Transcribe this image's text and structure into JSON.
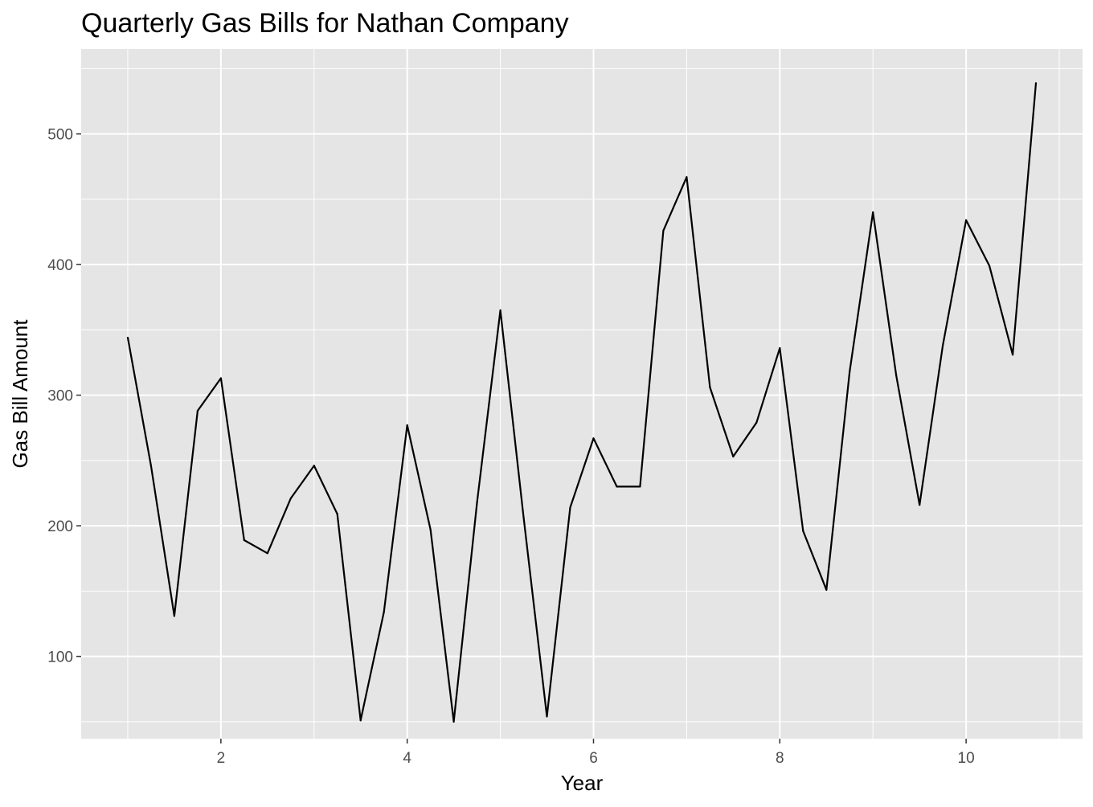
{
  "chart_data": {
    "type": "line",
    "title": "Quarterly Gas Bills for Nathan Company",
    "xlabel": "Year",
    "ylabel": "Gas Bill Amount",
    "xlim": [
      0.5,
      11.25
    ],
    "ylim": [
      37,
      565
    ],
    "x_ticks": [
      2,
      4,
      6,
      8,
      10
    ],
    "y_ticks": [
      100,
      200,
      300,
      400,
      500
    ],
    "x_minor": [
      1,
      3,
      5,
      7,
      9,
      11
    ],
    "y_minor": [
      50,
      150,
      250,
      350,
      450,
      550
    ],
    "grid": true,
    "background": "#e5e5e5",
    "grid_color": "#ffffff",
    "line_color": "#000000",
    "series": [
      {
        "x": [
          1,
          1.25,
          1.5,
          1.75,
          2,
          2.25,
          2.5,
          2.75,
          3,
          3.25,
          3.5,
          3.75,
          4,
          4.25,
          4.5,
          4.75,
          5,
          5.25,
          5.5,
          5.75,
          6,
          6.25,
          6.5,
          6.75,
          7,
          7.25,
          7.5,
          7.75,
          8,
          8.25,
          8.5,
          8.75,
          9,
          9.25,
          9.5,
          9.75,
          10,
          10.25,
          10.5,
          10.75
        ],
        "values": [
          344,
          246,
          131,
          288,
          313,
          189,
          179,
          221,
          246,
          209,
          51,
          134,
          277,
          197,
          50,
          218,
          365,
          206,
          54,
          214,
          267,
          230,
          230,
          426,
          467,
          306,
          253,
          279,
          336,
          196,
          151,
          318,
          440,
          315,
          216,
          338,
          434,
          399,
          331,
          539
        ]
      }
    ]
  }
}
